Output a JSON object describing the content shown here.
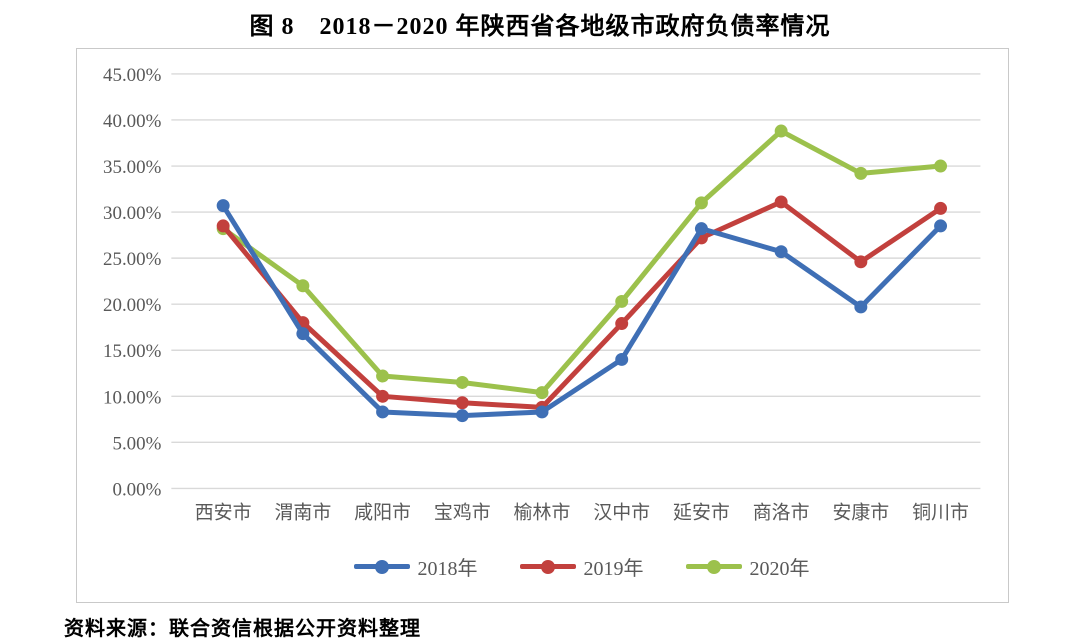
{
  "title": "图 8　2018－2020 年陕西省各地级市政府负债率情况",
  "source_note": "资料来源：联合资信根据公开资料整理",
  "colors": {
    "gridline": "#d9d9d9",
    "chart_border": "#c9c9c9",
    "axis_text": "#595959",
    "series_2018": "#3f6fb5",
    "series_2019": "#c2403d",
    "series_2020": "#9cc14c"
  },
  "chart_data": {
    "type": "line",
    "title": "图 8　2018－2020 年陕西省各地级市政府负债率情况",
    "categories": [
      "西安市",
      "渭南市",
      "咸阳市",
      "宝鸡市",
      "榆林市",
      "汉中市",
      "延安市",
      "商洛市",
      "安康市",
      "铜川市"
    ],
    "series": [
      {
        "name": "2018年",
        "color": "#3f6fb5",
        "values": [
          30.7,
          16.8,
          8.3,
          7.9,
          8.3,
          14.0,
          28.2,
          25.7,
          19.7,
          28.5
        ]
      },
      {
        "name": "2019年",
        "color": "#c2403d",
        "values": [
          28.5,
          18.0,
          10.0,
          9.3,
          8.8,
          17.9,
          27.2,
          31.1,
          24.6,
          30.4
        ]
      },
      {
        "name": "2020年",
        "color": "#9cc14c",
        "values": [
          28.2,
          22.0,
          12.2,
          11.5,
          10.4,
          20.3,
          31.0,
          38.8,
          34.2,
          35.0
        ]
      }
    ],
    "xlabel": "",
    "ylabel": "",
    "ylim": [
      0,
      45
    ],
    "ytick_step": 5,
    "ytick_labels": [
      "0.00%",
      "5.00%",
      "10.00%",
      "15.00%",
      "20.00%",
      "25.00%",
      "30.00%",
      "35.00%",
      "40.00%",
      "45.00%"
    ],
    "grid": true,
    "legend_position": "bottom",
    "marker": "circle"
  }
}
